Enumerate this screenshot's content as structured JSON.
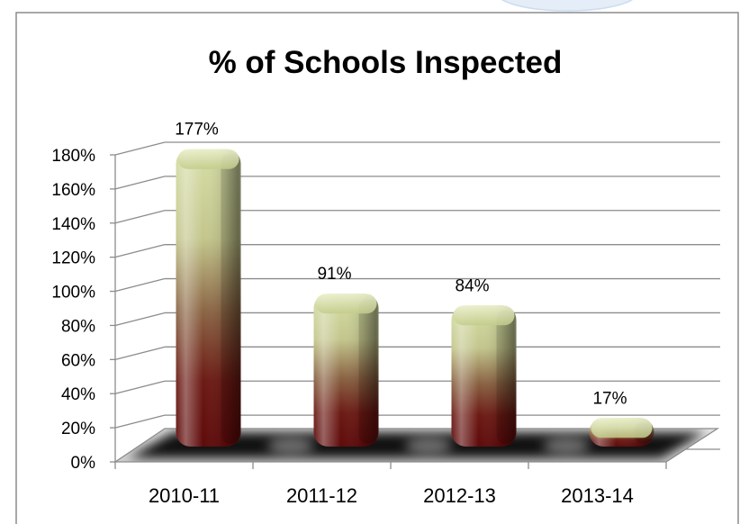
{
  "chart_data": {
    "type": "bar",
    "style": "3d-column",
    "title": "% of Schools Inspected",
    "xlabel": "",
    "ylabel": "",
    "categories": [
      "2010-11",
      "2011-12",
      "2012-13",
      "2013-14"
    ],
    "values": [
      177,
      91,
      84,
      17
    ],
    "data_labels": [
      "177%",
      "91%",
      "84%",
      "17%"
    ],
    "y_ticks": [
      "0%",
      "20%",
      "40%",
      "60%",
      "80%",
      "100%",
      "120%",
      "140%",
      "160%",
      "180%"
    ],
    "ylim": [
      0,
      180
    ],
    "y_tick_step": 20,
    "grid": true,
    "legend": "none",
    "colors": {
      "bar_top": "#d6dea6",
      "bar_upper": "#c3c68c",
      "bar_mid": "#8a6343",
      "bar_lower": "#6c1a14",
      "bar_bottom": "#5e0a0a",
      "cap_light": "#eef2d2",
      "cap_dark": "#c3cc8a",
      "grid": "#8c8c8c",
      "floor": "#cfcfcf",
      "floor_shadow": "#000000",
      "background_shape": "#e4edf8"
    }
  }
}
